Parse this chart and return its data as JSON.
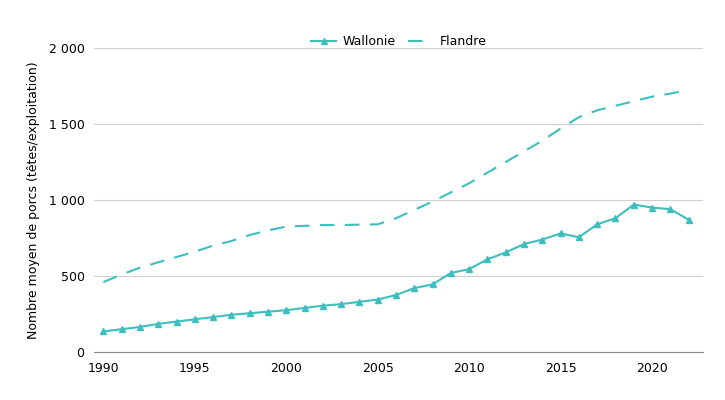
{
  "wallonie_years": [
    1990,
    1991,
    1992,
    1993,
    1994,
    1995,
    1996,
    1997,
    1998,
    1999,
    2000,
    2001,
    2002,
    2003,
    2004,
    2005,
    2006,
    2007,
    2008,
    2009,
    2010,
    2011,
    2012,
    2013,
    2014,
    2015,
    2016,
    2017,
    2018,
    2019,
    2020,
    2021,
    2022
  ],
  "wallonie_values": [
    135,
    150,
    165,
    185,
    200,
    215,
    230,
    245,
    255,
    265,
    275,
    290,
    305,
    315,
    330,
    345,
    375,
    420,
    445,
    520,
    545,
    610,
    655,
    710,
    740,
    780,
    755,
    840,
    880,
    970,
    950,
    940,
    870
  ],
  "flandre_years": [
    1990,
    1991,
    1992,
    1993,
    1994,
    1995,
    1996,
    1997,
    1998,
    1999,
    2000,
    2001,
    2002,
    2003,
    2004,
    2005,
    2006,
    2007,
    2008,
    2009,
    2010,
    2011,
    2012,
    2013,
    2014,
    2015,
    2016,
    2017,
    2018,
    2019,
    2020,
    2021,
    2022
  ],
  "flandre_values": [
    460,
    510,
    555,
    590,
    625,
    660,
    700,
    730,
    770,
    800,
    825,
    830,
    835,
    835,
    838,
    840,
    880,
    935,
    990,
    1050,
    1110,
    1180,
    1250,
    1320,
    1390,
    1470,
    1545,
    1590,
    1620,
    1650,
    1680,
    1700,
    1725
  ],
  "color": "#3dbfbf",
  "ylabel": "Nombre moyen de porcs (têtes/exploitation)",
  "ylim": [
    0,
    2000
  ],
  "yticks": [
    0,
    500,
    1000,
    1500,
    2000
  ],
  "ytick_labels": [
    "0",
    "500",
    "1 000",
    "1 500",
    "2 000"
  ],
  "xlim": [
    1989.5,
    2022.8
  ],
  "xticks": [
    1990,
    1995,
    2000,
    2005,
    2010,
    2015,
    2020
  ],
  "legend_wallonie": "Wallonie",
  "legend_flandre": "Flandre",
  "background_color": "#ffffff",
  "grid_color": "#d0d0d0"
}
